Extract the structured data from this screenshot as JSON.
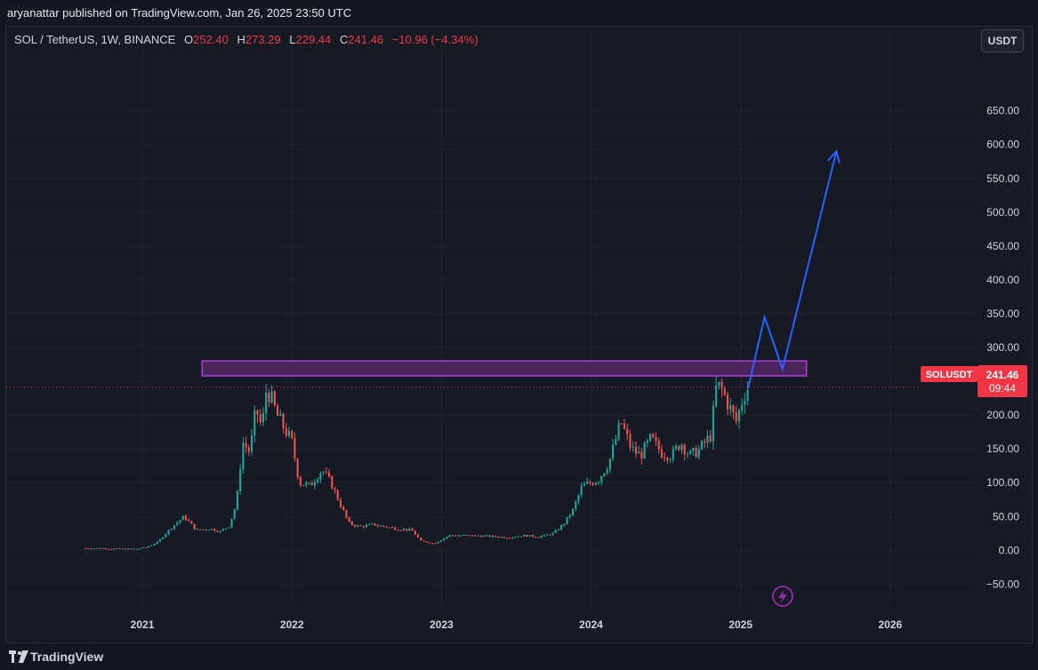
{
  "header": {
    "published": "aryanattar published on TradingView.com, Jan 26, 2025 23:50 UTC"
  },
  "legend": {
    "symbol": "SOL / TetherUS, 1W, BINANCE",
    "open_key": "O",
    "open": "252.40",
    "high_key": "H",
    "high": "273.29",
    "low_key": "L",
    "low": "229.44",
    "close_key": "C",
    "close": "241.46",
    "change": "−10.96 (−4.34%)"
  },
  "currency_button": "USDT",
  "price_tag": {
    "symbol": "SOLUSDT",
    "price": "241.46",
    "countdown": "09:44",
    "color": "#f23645"
  },
  "footer": {
    "brand": "TradingView"
  },
  "colors": {
    "up": "#26a69a",
    "down": "#ef5350",
    "zone_fill": "#5b2a6e",
    "zone_stroke": "#b23fd9",
    "projection": "#2962ff",
    "grid": "#1f2330"
  },
  "icons": {
    "event_marker": "lightning-bolt-icon",
    "logo": "tradingview-logo-icon"
  },
  "chart_data": {
    "type": "candlestick",
    "interval": "1W",
    "y_ticks": [
      -50,
      0,
      50,
      100,
      150,
      200,
      250,
      300,
      350,
      400,
      450,
      500,
      550,
      600,
      650
    ],
    "y_tick_labels": [
      "−50.00",
      "0.00",
      "50.00",
      "100.00",
      "150.00",
      "200.00",
      "250.00",
      "300.00",
      "350.00",
      "400.00",
      "450.00",
      "500.00",
      "550.00",
      "600.00",
      "650.00"
    ],
    "ylim": [
      -85,
      735
    ],
    "x_ticks": [
      2021,
      2022,
      2023,
      2024,
      2025,
      2026
    ],
    "xlim": [
      2020.09,
      2026.56
    ],
    "grid": true,
    "last_price": 241.46,
    "resistance_zone": {
      "x_start": 2021.4,
      "x_end": 2025.44,
      "y_low": 258,
      "y_high": 280
    },
    "projection_path": [
      {
        "x": 2025.05,
        "y": 240
      },
      {
        "x": 2025.16,
        "y": 345
      },
      {
        "x": 2025.28,
        "y": 268
      },
      {
        "x": 2025.64,
        "y": 590
      }
    ],
    "series": [
      {
        "ohlc_anchors": [
          [
            2020.62,
            3
          ],
          [
            2020.72,
            3
          ],
          [
            2020.85,
            2
          ],
          [
            2020.95,
            2
          ],
          [
            2021.02,
            4
          ],
          [
            2021.1,
            12
          ],
          [
            2021.2,
            35
          ],
          [
            2021.28,
            50
          ],
          [
            2021.36,
            30
          ],
          [
            2021.45,
            32
          ],
          [
            2021.52,
            28
          ],
          [
            2021.58,
            36
          ],
          [
            2021.63,
            70
          ],
          [
            2021.67,
            160
          ],
          [
            2021.72,
            145
          ],
          [
            2021.76,
            210
          ],
          [
            2021.8,
            180
          ],
          [
            2021.83,
            240
          ],
          [
            2021.86,
            225
          ],
          [
            2021.9,
            200
          ],
          [
            2021.95,
            180
          ],
          [
            2022.0,
            160
          ],
          [
            2022.05,
            100
          ],
          [
            2022.12,
            95
          ],
          [
            2022.2,
            120
          ],
          [
            2022.26,
            100
          ],
          [
            2022.32,
            70
          ],
          [
            2022.38,
            40
          ],
          [
            2022.45,
            35
          ],
          [
            2022.55,
            38
          ],
          [
            2022.62,
            35
          ],
          [
            2022.7,
            32
          ],
          [
            2022.8,
            30
          ],
          [
            2022.86,
            14
          ],
          [
            2022.95,
            10
          ],
          [
            2023.05,
            22
          ],
          [
            2023.15,
            22
          ],
          [
            2023.3,
            21
          ],
          [
            2023.45,
            19
          ],
          [
            2023.55,
            22
          ],
          [
            2023.65,
            20
          ],
          [
            2023.75,
            25
          ],
          [
            2023.82,
            40
          ],
          [
            2023.88,
            60
          ],
          [
            2023.94,
            95
          ],
          [
            2024.0,
            100
          ],
          [
            2024.05,
            105
          ],
          [
            2024.12,
            130
          ],
          [
            2024.2,
            190
          ],
          [
            2024.27,
            150
          ],
          [
            2024.33,
            140
          ],
          [
            2024.4,
            165
          ],
          [
            2024.47,
            145
          ],
          [
            2024.54,
            140
          ],
          [
            2024.6,
            160
          ],
          [
            2024.66,
            140
          ],
          [
            2024.72,
            148
          ],
          [
            2024.8,
            170
          ],
          [
            2024.84,
            245
          ],
          [
            2024.88,
            235
          ],
          [
            2024.93,
            210
          ],
          [
            2024.97,
            190
          ],
          [
            2025.02,
            230
          ],
          [
            2025.05,
            241.46
          ]
        ]
      }
    ]
  }
}
